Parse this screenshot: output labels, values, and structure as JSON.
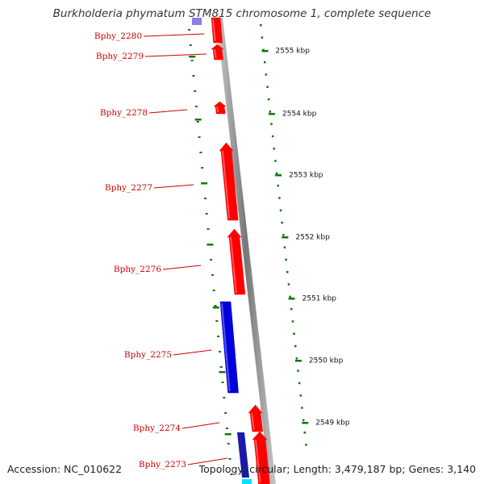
{
  "title": "Burkholderia phymatum STM815 chromosome 1, complete sequence",
  "accession": "Accession: NC_010622",
  "topology": "Topology: circular; Length: 3,479,187 bp; Genes: 3,140",
  "colors": {
    "forward_gene": "#ff0000",
    "reverse_gene": "#0000dd",
    "label": "#cc0000",
    "ticks": "#117711",
    "backbone": "#8a8a8a",
    "highlight": "#00e5ff"
  },
  "scale_labels": [
    "2555 kbp",
    "2554 kbp",
    "2553 kbp",
    "2552 kbp",
    "2551 kbp",
    "2550 kbp",
    "2549 kbp"
  ],
  "genes": [
    {
      "label": "Bphy_2280",
      "strand": "forward"
    },
    {
      "label": "Bphy_2279",
      "strand": "forward"
    },
    {
      "label": "Bphy_2278",
      "strand": "forward"
    },
    {
      "label": "Bphy_2277",
      "strand": "forward"
    },
    {
      "label": "Bphy_2276",
      "strand": "forward"
    },
    {
      "label": "Bphy_2275",
      "strand": "reverse"
    },
    {
      "label": "Bphy_2274",
      "strand": "forward"
    },
    {
      "label": "Bphy_2273",
      "strand": "forward"
    }
  ]
}
